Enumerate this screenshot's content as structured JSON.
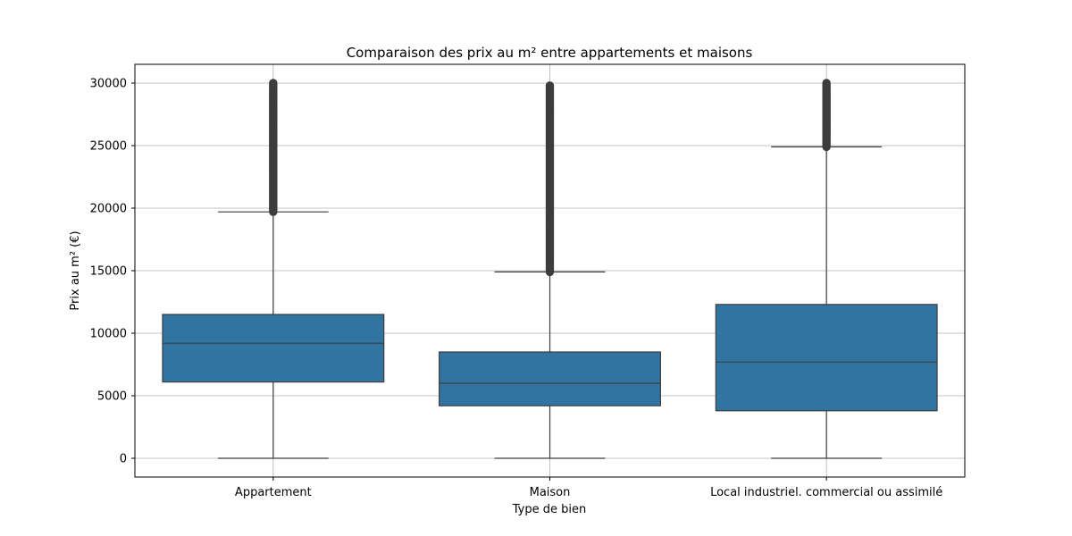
{
  "chart_data": {
    "type": "box",
    "title": "Comparaison des prix au m² entre appartements et maisons",
    "xlabel": "Type de bien",
    "ylabel": "Prix au m² (€)",
    "ylim": [
      -1500,
      31500
    ],
    "yticks": [
      0,
      5000,
      10000,
      15000,
      20000,
      25000,
      30000
    ],
    "grid": true,
    "box_color": "#3274a1",
    "line_color": "#3d3d3d",
    "categories": [
      "Appartement",
      "Maison",
      "Local industriel. commercial ou assimilé"
    ],
    "boxes": [
      {
        "category": "Appartement",
        "whisker_low": 0,
        "q1": 6100,
        "median": 9200,
        "q3": 11500,
        "whisker_high": 19700,
        "outliers_from": 19700,
        "outliers_to": 30000
      },
      {
        "category": "Maison",
        "whisker_low": 0,
        "q1": 4200,
        "median": 6000,
        "q3": 8500,
        "whisker_high": 14900,
        "outliers_from": 14900,
        "outliers_to": 29800
      },
      {
        "category": "Local industriel. commercial ou assimilé",
        "whisker_low": 0,
        "q1": 3800,
        "median": 7700,
        "q3": 12300,
        "whisker_high": 24900,
        "outliers_from": 24900,
        "outliers_to": 30000
      }
    ]
  }
}
